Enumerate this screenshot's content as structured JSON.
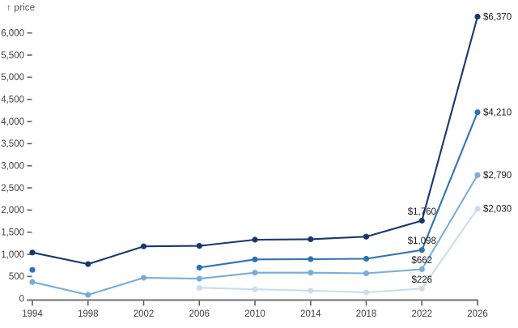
{
  "chart": {
    "y_axis_label": "↑ price"
  },
  "colors": {
    "axis_line": "#7e7e7e",
    "tick_mark": "#5f5f5f",
    "tick_label": "#3f3f3f",
    "value_label": "#1a1a1a",
    "axis_title": "#4d4d4d",
    "background": "#ffffff"
  },
  "chart_data": {
    "type": "line",
    "title": "",
    "xlabel": "",
    "ylabel": "price",
    "ylabel_display": "↑ price",
    "xlim": [
      1994,
      2026
    ],
    "ylim": [
      0,
      6500
    ],
    "grid": false,
    "legend": "none",
    "x_ticks": [
      1994,
      1998,
      2002,
      2006,
      2010,
      2014,
      2018,
      2022,
      2026
    ],
    "x_tick_labels": [
      "1994",
      "1998",
      "2002",
      "2006",
      "2010",
      "2014",
      "2018",
      "2022",
      "2026"
    ],
    "y_ticks": [
      0,
      500,
      1000,
      1500,
      2000,
      2500,
      3000,
      3500,
      4000,
      4500,
      5000,
      5500,
      6000
    ],
    "y_tick_labels": [
      "0",
      "500",
      "1,000",
      "1,500",
      "2,000",
      "2,500",
      "3,000",
      "3,500",
      "4,000",
      "4,500",
      "5,000",
      "5,500",
      "6,000"
    ],
    "series": [
      {
        "name": "series-darkest-blue",
        "color": "#18386c",
        "x": [
          1994,
          1998,
          2002,
          2006,
          2010,
          2014,
          2018,
          2022,
          2026
        ],
        "values": [
          1040,
          780,
          1180,
          1190,
          1330,
          1340,
          1400,
          1760,
          6370
        ],
        "labels": [
          {
            "x": 2022,
            "value": 1760,
            "text": "$1,760",
            "position": "above"
          },
          {
            "x": 2026,
            "value": 6370,
            "text": "$6,370",
            "position": "right"
          }
        ]
      },
      {
        "name": "series-dark-blue",
        "color": "#2d73b4",
        "x": [
          1994,
          2006,
          2010,
          2014,
          2018,
          2022,
          2026
        ],
        "values": [
          650,
          700,
          885,
          890,
          900,
          1098,
          4210
        ],
        "labels": [
          {
            "x": 2022,
            "value": 1098,
            "text": "$1,098",
            "position": "above"
          },
          {
            "x": 2026,
            "value": 4210,
            "text": "$4,210",
            "position": "right"
          }
        ]
      },
      {
        "name": "series-medium-blue",
        "color": "#79add7",
        "x": [
          1994,
          1998,
          2002,
          2006,
          2010,
          2014,
          2018,
          2022,
          2026
        ],
        "values": [
          375,
          85,
          470,
          450,
          585,
          585,
          570,
          662,
          2790
        ],
        "labels": [
          {
            "x": 2022,
            "value": 662,
            "text": "$662",
            "position": "above"
          },
          {
            "x": 2026,
            "value": 2790,
            "text": "$2,790",
            "position": "right"
          }
        ]
      },
      {
        "name": "series-light-blue",
        "color": "#cadded",
        "x": [
          2006,
          2010,
          2014,
          2018,
          2022,
          2026
        ],
        "values": [
          245,
          210,
          180,
          140,
          226,
          2030
        ],
        "labels": [
          {
            "x": 2022,
            "value": 226,
            "text": "$226",
            "position": "above"
          },
          {
            "x": 2026,
            "value": 2030,
            "text": "$2,030",
            "position": "right"
          }
        ]
      }
    ]
  }
}
